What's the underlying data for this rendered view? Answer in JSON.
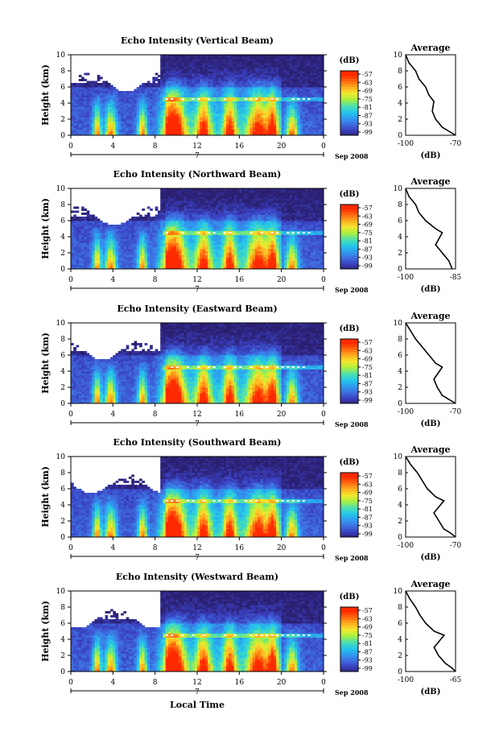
{
  "figure": {
    "xlabel": "Local Time",
    "date_label": "Sep 2008",
    "day_marker": "7",
    "colorbar_unit": "(dB)",
    "average_title": "Average",
    "average_xunit": "(dB)",
    "ylabel": "Height (km)"
  },
  "colorbar": {
    "ticks": [
      "-57",
      "-63",
      "-69",
      "-75",
      "-81",
      "-87",
      "-93",
      "-99"
    ],
    "colors": [
      "#ff2200",
      "#ff7a00",
      "#ffd000",
      "#b8ff3a",
      "#22e6ff",
      "#1a8cff",
      "#3a4cd8",
      "#2a2478"
    ]
  },
  "chart_data": [
    {
      "type": "heatmap",
      "title": "Echo Intensity (Vertical Beam)",
      "x_ticks": [
        "0",
        "4",
        "8",
        "12",
        "16",
        "20",
        "0"
      ],
      "xlim": [
        0,
        24
      ],
      "y_ticks": [
        "0",
        "2",
        "4",
        "6",
        "8",
        "10"
      ],
      "ylim": [
        0,
        10
      ],
      "zlim": [
        -99,
        -57
      ],
      "average": {
        "xlim": [
          -100,
          -70
        ],
        "x_ticks": [
          "-100",
          "-70"
        ],
        "profile": [
          [
            -70,
            0
          ],
          [
            -74,
            0.5
          ],
          [
            -78,
            1
          ],
          [
            -82,
            2
          ],
          [
            -84,
            3
          ],
          [
            -83,
            4.2
          ],
          [
            -86,
            5
          ],
          [
            -88,
            6
          ],
          [
            -92,
            7
          ],
          [
            -94,
            8
          ],
          [
            -98,
            9
          ],
          [
            -100,
            10
          ]
        ]
      }
    },
    {
      "type": "heatmap",
      "title": "Echo Intensity (Northward Beam)",
      "x_ticks": [
        "0",
        "4",
        "8",
        "12",
        "16",
        "20",
        "0"
      ],
      "xlim": [
        0,
        24
      ],
      "y_ticks": [
        "0",
        "2",
        "4",
        "6",
        "8",
        "10"
      ],
      "ylim": [
        0,
        10
      ],
      "zlim": [
        -99,
        -57
      ],
      "average": {
        "xlim": [
          -100,
          -85
        ],
        "x_ticks": [
          "-100",
          "-85"
        ],
        "profile": [
          [
            -86,
            0
          ],
          [
            -87,
            1
          ],
          [
            -89,
            2
          ],
          [
            -91,
            3
          ],
          [
            -89,
            4.5
          ],
          [
            -91,
            5
          ],
          [
            -94,
            6
          ],
          [
            -96,
            7
          ],
          [
            -97,
            8
          ],
          [
            -99,
            9
          ],
          [
            -100,
            10
          ]
        ]
      }
    },
    {
      "type": "heatmap",
      "title": "Echo Intensity (Eastward Beam)",
      "x_ticks": [
        "0",
        "4",
        "8",
        "12",
        "16",
        "20",
        "0"
      ],
      "xlim": [
        0,
        24
      ],
      "y_ticks": [
        "0",
        "2",
        "4",
        "6",
        "8",
        "10"
      ],
      "ylim": [
        0,
        10
      ],
      "zlim": [
        -99,
        -57
      ],
      "average": {
        "xlim": [
          -100,
          -70
        ],
        "x_ticks": [
          "-100",
          "-70"
        ],
        "profile": [
          [
            -70,
            0
          ],
          [
            -74,
            0.5
          ],
          [
            -78,
            1
          ],
          [
            -81,
            2
          ],
          [
            -83,
            3
          ],
          [
            -78,
            4.5
          ],
          [
            -82,
            5
          ],
          [
            -86,
            6
          ],
          [
            -90,
            7
          ],
          [
            -94,
            8
          ],
          [
            -97,
            9
          ],
          [
            -100,
            10
          ]
        ]
      }
    },
    {
      "type": "heatmap",
      "title": "Echo Intensity (Southward Beam)",
      "x_ticks": [
        "0",
        "4",
        "8",
        "12",
        "16",
        "20",
        "0"
      ],
      "xlim": [
        0,
        24
      ],
      "y_ticks": [
        "0",
        "2",
        "4",
        "6",
        "8",
        "10"
      ],
      "ylim": [
        0,
        10
      ],
      "zlim": [
        -99,
        -57
      ],
      "average": {
        "xlim": [
          -100,
          -70
        ],
        "x_ticks": [
          "-100",
          "-70"
        ],
        "profile": [
          [
            -70,
            0
          ],
          [
            -73,
            0.5
          ],
          [
            -77,
            1
          ],
          [
            -80,
            2
          ],
          [
            -83,
            3
          ],
          [
            -77,
            4.5
          ],
          [
            -82,
            5
          ],
          [
            -87,
            6
          ],
          [
            -90,
            7
          ],
          [
            -93,
            8
          ],
          [
            -97,
            9
          ],
          [
            -100,
            10
          ]
        ]
      }
    },
    {
      "type": "heatmap",
      "title": "Echo Intensity (Westward Beam)",
      "x_ticks": [
        "0",
        "4",
        "8",
        "12",
        "16",
        "20",
        "0"
      ],
      "xlim": [
        0,
        24
      ],
      "y_ticks": [
        "0",
        "2",
        "4",
        "6",
        "8",
        "10"
      ],
      "ylim": [
        0,
        10
      ],
      "zlim": [
        -99,
        -57
      ],
      "average": {
        "xlim": [
          -100,
          -65
        ],
        "x_ticks": [
          "-100",
          "-65"
        ],
        "profile": [
          [
            -65,
            0
          ],
          [
            -68,
            0.5
          ],
          [
            -72,
            1
          ],
          [
            -77,
            2
          ],
          [
            -80,
            3
          ],
          [
            -73,
            4.5
          ],
          [
            -80,
            5
          ],
          [
            -86,
            6
          ],
          [
            -90,
            7
          ],
          [
            -93,
            8
          ],
          [
            -97,
            9
          ],
          [
            -100,
            10
          ]
        ]
      }
    }
  ]
}
